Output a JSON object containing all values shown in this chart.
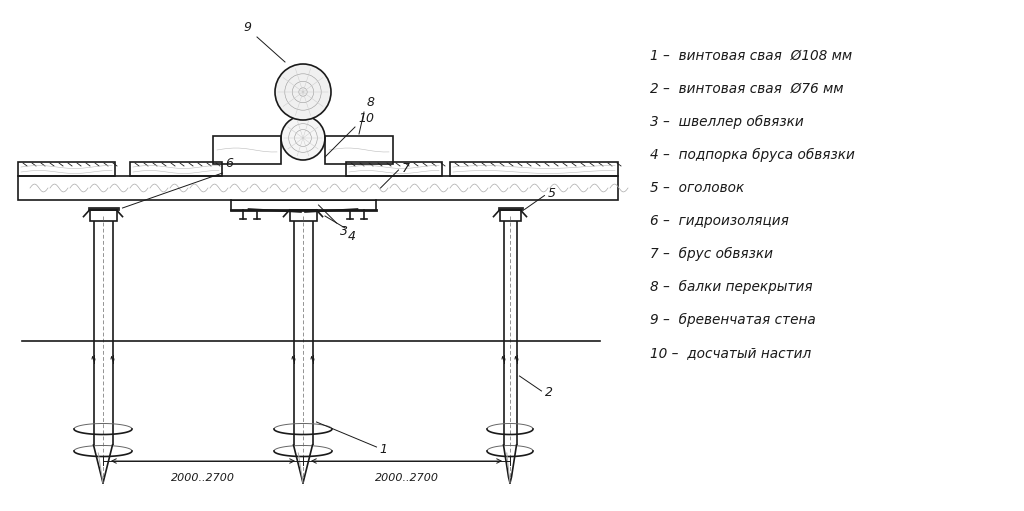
{
  "bg_color": "#ffffff",
  "line_color": "#1a1a1a",
  "legend_items": [
    "1 –  винтовая свая  Ø108 мм",
    "2 –  винтовая свая  Ø76 мм",
    "3 –  швеллер обвязки",
    "4 –  подпорка бруса обвязки",
    "5 –  оголовок",
    "6 –  гидроизоляция",
    "7 –  брус обвязки",
    "8 –  балки перекрытия",
    "9 –  бревенчатая стена",
    "10 –  досчатый настил"
  ],
  "dim_text_1": "2000..2700",
  "dim_text_2": "2000..2700"
}
